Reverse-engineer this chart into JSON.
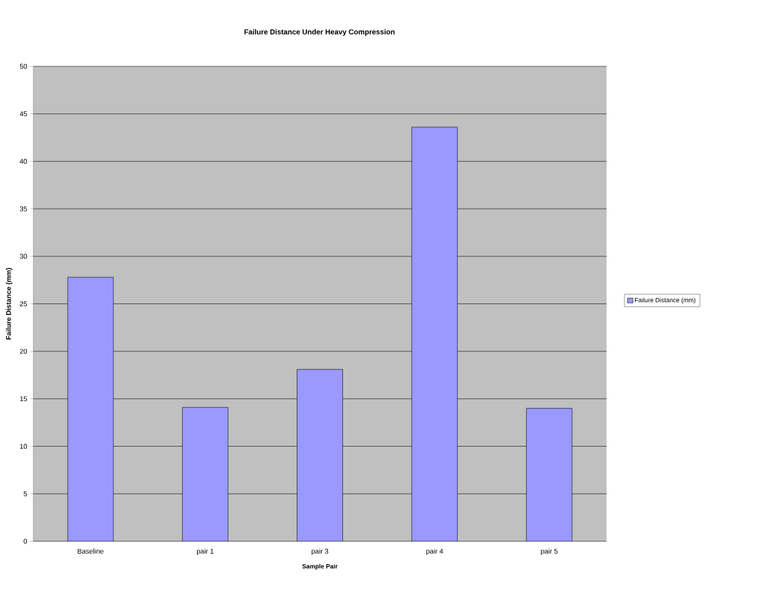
{
  "chart_data": {
    "type": "bar",
    "title": "Failure Distance Under Heavy Compression",
    "xlabel": "Sample Pair",
    "ylabel": "Failure Distance (mm)",
    "categories": [
      "Baseline",
      "pair 1",
      "pair 3",
      "pair 4",
      "pair 5"
    ],
    "series": [
      {
        "name": "Failure Distance (mm)",
        "color": "#9999ff",
        "values": [
          27.8,
          14.1,
          18.1,
          43.6,
          14.0
        ]
      }
    ],
    "ylim": [
      0,
      50
    ],
    "yticks": [
      0,
      5,
      10,
      15,
      20,
      25,
      30,
      35,
      40,
      45,
      50
    ],
    "grid": "y",
    "legend": "right"
  }
}
